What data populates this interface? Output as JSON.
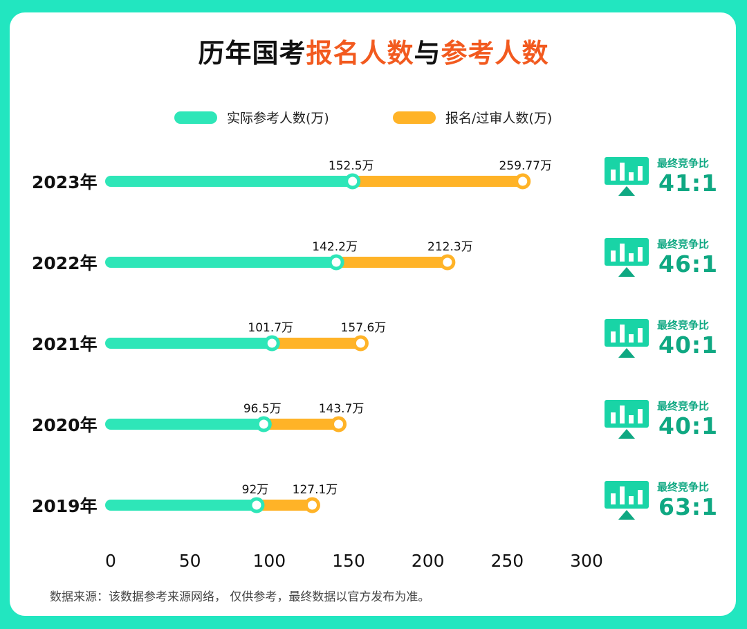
{
  "title_parts": {
    "part1": "历年国考",
    "part2": "报名人数",
    "part3": "与",
    "part4": "参考人数"
  },
  "colors": {
    "accent_orange": "#f25a1f",
    "actual_series": "#2ee6b8",
    "registered_series": "#ffb327",
    "ratio_text": "#0fa882"
  },
  "legend": [
    {
      "label": "实际参考人数(万)",
      "color": "#2ee6b8"
    },
    {
      "label": "报名/过审人数(万)",
      "color": "#ffb327"
    }
  ],
  "source_note": "数据来源：该数据参考来源网络，  仅供参考，最终数据以官方发布为准。",
  "chart_data": {
    "type": "bar",
    "orientation": "horizontal",
    "categories": [
      "2023年",
      "2022年",
      "2021年",
      "2020年",
      "2019年"
    ],
    "series": [
      {
        "name": "实际参考人数(万)",
        "values": [
          152.5,
          142.2,
          101.7,
          96.5,
          92
        ]
      },
      {
        "name": "报名/过审人数(万)",
        "values": [
          259.77,
          212.3,
          157.6,
          143.7,
          127.1
        ]
      }
    ],
    "value_labels_actual": [
      "152.5万",
      "142.2万",
      "101.7万",
      "96.5万",
      "92万"
    ],
    "value_labels_registered": [
      "259.77万",
      "212.3万",
      "157.6万",
      "143.7万",
      "127.1万"
    ],
    "ratio_caption": "最终竞争比",
    "ratios": [
      "41:1",
      "46:1",
      "40:1",
      "40:1",
      "63:1"
    ],
    "x_ticks": [
      "0",
      "50",
      "100",
      "150",
      "200",
      "250",
      "300"
    ],
    "xlim": [
      0,
      300
    ],
    "grid": false,
    "legend_position": "top"
  }
}
